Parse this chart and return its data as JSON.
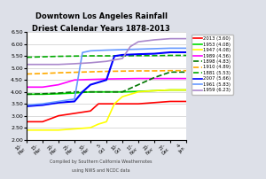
{
  "title": "Downtown Los Angeles Rainfall\nDriest Calendar Years 1878-2013",
  "subtitle": "Compiled by Southern California Weathernotes\nusing NWS and NCDC data",
  "xlim": [
    0,
    10
  ],
  "ylim": [
    2.0,
    6.5
  ],
  "yticks": [
    2.0,
    2.5,
    3.0,
    3.5,
    4.0,
    4.5,
    5.0,
    5.5,
    6.0,
    6.5
  ],
  "x_tick_positions": [
    0,
    1,
    2,
    3,
    4,
    5,
    6,
    7,
    8,
    9,
    10
  ],
  "x_tick_labels": [
    "10-\nMar",
    "15-\nMar",
    "20-\nMar",
    "25-\nMar",
    "30-\nMar",
    "5-\nOct",
    "10-\nOct",
    "17-\nNov",
    "20-\nNov",
    "27-\nDec",
    "4-\nJan"
  ],
  "series": [
    {
      "label": "2013 (3.60)",
      "color": "#ff0000",
      "linestyle": "-",
      "linewidth": 1.2,
      "x": [
        0,
        1,
        2,
        3,
        4,
        4.5,
        5,
        6,
        7,
        8,
        9,
        10
      ],
      "y": [
        2.75,
        2.75,
        3.0,
        3.1,
        3.2,
        3.5,
        3.5,
        3.5,
        3.5,
        3.55,
        3.6,
        3.6
      ]
    },
    {
      "label": "1953 (4.08)",
      "color": "#00dd00",
      "linestyle": "-",
      "linewidth": 1.2,
      "x": [
        0,
        1,
        2,
        3,
        4,
        5,
        6,
        7,
        8,
        9,
        10
      ],
      "y": [
        3.9,
        3.9,
        3.92,
        3.95,
        4.0,
        4.0,
        4.0,
        4.02,
        4.05,
        4.08,
        4.08
      ]
    },
    {
      "label": "1947 (4.08)",
      "color": "#ffff00",
      "linestyle": "-",
      "linewidth": 1.2,
      "x": [
        0,
        1,
        2,
        3,
        4,
        4.5,
        5,
        5.5,
        6,
        7,
        8,
        9,
        10
      ],
      "y": [
        2.4,
        2.4,
        2.4,
        2.45,
        2.5,
        2.65,
        2.75,
        3.5,
        3.8,
        4.0,
        4.05,
        4.08,
        4.08
      ]
    },
    {
      "label": "1989 (4.56)",
      "color": "#ff00ff",
      "linestyle": "-",
      "linewidth": 1.2,
      "x": [
        0,
        1,
        2,
        3,
        4,
        5,
        6,
        7,
        8,
        9,
        10
      ],
      "y": [
        4.2,
        4.2,
        4.3,
        4.5,
        4.52,
        4.54,
        4.55,
        4.56,
        4.56,
        4.56,
        4.56
      ]
    },
    {
      "label": "1898 (4.83)",
      "color": "#007700",
      "linestyle": "--",
      "linewidth": 1.2,
      "x": [
        0,
        1,
        2,
        3,
        4,
        5,
        6,
        7,
        8,
        9,
        10
      ],
      "y": [
        3.9,
        3.92,
        3.95,
        4.0,
        4.0,
        4.0,
        4.0,
        4.3,
        4.6,
        4.83,
        4.83
      ]
    },
    {
      "label": "1910 (4.89)",
      "color": "#ffaa00",
      "linestyle": "--",
      "linewidth": 1.2,
      "x": [
        0,
        1,
        2,
        3,
        4,
        5,
        6,
        7,
        8,
        9,
        10
      ],
      "y": [
        4.75,
        4.77,
        4.8,
        4.82,
        4.84,
        4.86,
        4.87,
        4.88,
        4.88,
        4.89,
        4.89
      ]
    },
    {
      "label": "1881 (5.53)",
      "color": "#00aa00",
      "linestyle": "--",
      "linewidth": 1.2,
      "x": [
        0,
        1,
        2,
        3,
        4,
        5,
        6,
        7,
        8,
        9,
        10
      ],
      "y": [
        5.45,
        5.47,
        5.49,
        5.5,
        5.51,
        5.51,
        5.51,
        5.52,
        5.52,
        5.53,
        5.53
      ]
    },
    {
      "label": "2007 (5.66)",
      "color": "#0000ff",
      "linestyle": "-",
      "linewidth": 1.5,
      "x": [
        0,
        1,
        2,
        3,
        3.5,
        4,
        4.5,
        5,
        5.5,
        6,
        7,
        8,
        9,
        10
      ],
      "y": [
        3.4,
        3.45,
        3.55,
        3.6,
        4.0,
        4.3,
        4.4,
        4.5,
        5.5,
        5.55,
        5.58,
        5.6,
        5.66,
        5.66
      ]
    },
    {
      "label": "1961 (5.83)",
      "color": "#6699ff",
      "linestyle": "-",
      "linewidth": 1.2,
      "x": [
        0,
        1,
        2,
        3,
        3.5,
        4,
        5,
        6,
        7,
        8,
        9,
        10
      ],
      "y": [
        3.45,
        3.5,
        3.6,
        3.7,
        5.65,
        5.72,
        5.75,
        5.77,
        5.79,
        5.81,
        5.83,
        5.83
      ]
    },
    {
      "label": "1959 (6.23)",
      "color": "#aa88cc",
      "linestyle": "-",
      "linewidth": 1.2,
      "x": [
        0,
        1,
        2,
        3,
        4,
        5,
        6,
        6.5,
        7,
        8,
        9,
        10
      ],
      "y": [
        5.15,
        5.15,
        5.15,
        5.18,
        5.22,
        5.28,
        5.4,
        5.9,
        6.1,
        6.18,
        6.23,
        6.23
      ]
    }
  ],
  "legend_colors": [
    "#ff0000",
    "#00dd00",
    "#ffff00",
    "#ff00ff",
    "#007700",
    "#ffaa00",
    "#00aa00",
    "#0000ff",
    "#6699ff",
    "#aa88cc"
  ],
  "legend_labels": [
    "2013 (3.60)",
    "1953 (4.08)",
    "1947 (4.08)",
    "1989 (4.56)",
    "1898 (4.83)",
    "1910 (4.89)",
    "1881 (5.53)",
    "2007 (5.66)",
    "1961 (5.83)",
    "1959 (6.23)"
  ],
  "legend_linestyles": [
    "-",
    "-",
    "-",
    "-",
    "--",
    "--",
    "--",
    "-",
    "-",
    "-"
  ],
  "background_color": "#dde0e8",
  "plot_bg_color": "#ffffff"
}
